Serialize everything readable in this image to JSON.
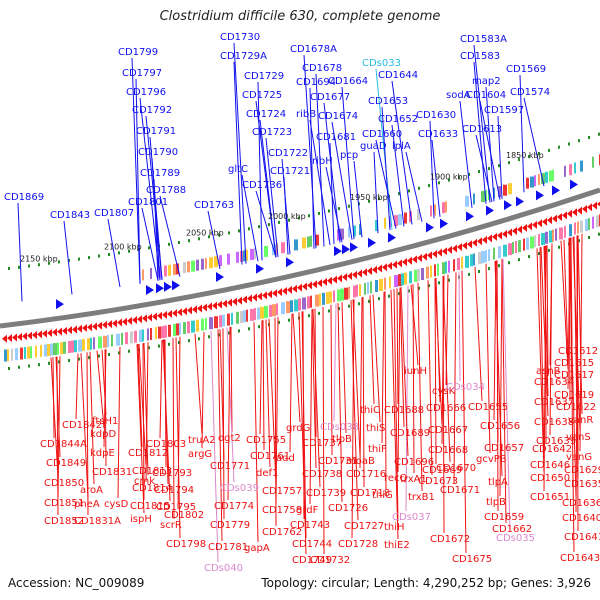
{
  "title": "Clostridium difficile 630, complete genome",
  "footer": {
    "accession": "Accession: NC_009089",
    "summary": "Topology: circular; Length: 4,290,252 bp; Genes: 3,926"
  },
  "colors": {
    "forward": "#1010ee",
    "reverse": "#ee1111",
    "rna_forward": "#22bbdd",
    "rna_reverse": "#dd88cc",
    "backbone": "#888888",
    "tick": "#228822"
  },
  "scale_labels": [
    "2150 kbp",
    "2100 kbp",
    "2050 kbp",
    "2000 kbp",
    "1950 kbp",
    "1900 kbp",
    "1850 kbp"
  ],
  "top_labels": [
    {
      "text": "CD1869",
      "c": "f"
    },
    {
      "text": "CD1843",
      "c": "f"
    },
    {
      "text": "CD1807",
      "c": "f"
    },
    {
      "text": "CD1801",
      "c": "f"
    },
    {
      "text": "CD1788",
      "c": "f"
    },
    {
      "text": "CD1789",
      "c": "f"
    },
    {
      "text": "CD1790",
      "c": "f"
    },
    {
      "text": "CD1791",
      "c": "f"
    },
    {
      "text": "CD1792",
      "c": "f"
    },
    {
      "text": "CD1796",
      "c": "f"
    },
    {
      "text": "CD1797",
      "c": "f"
    },
    {
      "text": "CD1799",
      "c": "f"
    },
    {
      "text": "CD1763",
      "c": "f"
    },
    {
      "text": "gltC",
      "c": "f"
    },
    {
      "text": "CD1736",
      "c": "f"
    },
    {
      "text": "CD1721",
      "c": "f"
    },
    {
      "text": "CD1722",
      "c": "f"
    },
    {
      "text": "CD1723",
      "c": "f"
    },
    {
      "text": "CD1724",
      "c": "f"
    },
    {
      "text": "CD1725",
      "c": "f"
    },
    {
      "text": "CD1729",
      "c": "f"
    },
    {
      "text": "CD1729A",
      "c": "f"
    },
    {
      "text": "CD1730",
      "c": "f"
    },
    {
      "text": "ribH",
      "c": "f"
    },
    {
      "text": "ribB",
      "c": "f"
    },
    {
      "text": "CD1694",
      "c": "f"
    },
    {
      "text": "CD1678",
      "c": "f"
    },
    {
      "text": "CD1678A",
      "c": "f"
    },
    {
      "text": "CD1677",
      "c": "f"
    },
    {
      "text": "CD1674",
      "c": "f"
    },
    {
      "text": "CD1681",
      "c": "f"
    },
    {
      "text": "pcp",
      "c": "f"
    },
    {
      "text": "CD1664",
      "c": "f"
    },
    {
      "text": "CDs033",
      "c": "fr"
    },
    {
      "text": "CD1660",
      "c": "f"
    },
    {
      "text": "guaD",
      "c": "f"
    },
    {
      "text": "CD1653",
      "c": "f"
    },
    {
      "text": "CD1652",
      "c": "f"
    },
    {
      "text": "lplA",
      "c": "f"
    },
    {
      "text": "CD1644",
      "c": "f"
    },
    {
      "text": "CD1630",
      "c": "f"
    },
    {
      "text": "CD1633",
      "c": "f"
    },
    {
      "text": "sodA",
      "c": "f"
    },
    {
      "text": "CD1613",
      "c": "f"
    },
    {
      "text": "CD1604",
      "c": "f"
    },
    {
      "text": "CD1597",
      "c": "f"
    },
    {
      "text": "map2",
      "c": "f"
    },
    {
      "text": "CD1583",
      "c": "f"
    },
    {
      "text": "CD1583A",
      "c": "f"
    },
    {
      "text": "CD1574",
      "c": "f"
    },
    {
      "text": "CD1569",
      "c": "f"
    }
  ],
  "bottom_labels": [
    {
      "text": "CD1842",
      "c": "r"
    },
    {
      "text": "CD1844A",
      "c": "r"
    },
    {
      "text": "CD1849",
      "c": "r"
    },
    {
      "text": "CD1850",
      "c": "r"
    },
    {
      "text": "CD1851",
      "c": "r"
    },
    {
      "text": "CD1852",
      "c": "r"
    },
    {
      "text": "ftsH1",
      "c": "r"
    },
    {
      "text": "kdpD",
      "c": "r"
    },
    {
      "text": "kdpE",
      "c": "r"
    },
    {
      "text": "CD1831",
      "c": "r"
    },
    {
      "text": "aroA",
      "c": "r"
    },
    {
      "text": "pheA",
      "c": "r"
    },
    {
      "text": "cysD",
      "c": "r"
    },
    {
      "text": "CD1831A",
      "c": "r"
    },
    {
      "text": "CD1812",
      "c": "r"
    },
    {
      "text": "CD1813",
      "c": "r"
    },
    {
      "text": "CD1814",
      "c": "r"
    },
    {
      "text": "CD1815",
      "c": "r"
    },
    {
      "text": "cmk",
      "c": "r"
    },
    {
      "text": "ispH",
      "c": "r"
    },
    {
      "text": "CD1803",
      "c": "r"
    },
    {
      "text": "CD1793",
      "c": "r"
    },
    {
      "text": "CD1794",
      "c": "r"
    },
    {
      "text": "CD1795",
      "c": "r"
    },
    {
      "text": "CD1802",
      "c": "r"
    },
    {
      "text": "scrR",
      "c": "r"
    },
    {
      "text": "CD1798",
      "c": "r"
    },
    {
      "text": "truA2",
      "c": "r"
    },
    {
      "text": "argG",
      "c": "r"
    },
    {
      "text": "ogt2",
      "c": "r"
    },
    {
      "text": "CD1771",
      "c": "r"
    },
    {
      "text": "CDs039",
      "c": "rr"
    },
    {
      "text": "CD1774",
      "c": "r"
    },
    {
      "text": "CD1779",
      "c": "r"
    },
    {
      "text": "CD1781",
      "c": "r"
    },
    {
      "text": "CDs040",
      "c": "rr"
    },
    {
      "text": "CD1755",
      "c": "r"
    },
    {
      "text": "CD1761",
      "c": "r"
    },
    {
      "text": "def1",
      "c": "r"
    },
    {
      "text": "CD1757",
      "c": "r"
    },
    {
      "text": "CD1758",
      "c": "r"
    },
    {
      "text": "CD1762",
      "c": "r"
    },
    {
      "text": "gapA",
      "c": "r"
    },
    {
      "text": "grdG",
      "c": "r"
    },
    {
      "text": "add",
      "c": "r"
    },
    {
      "text": "CD1737",
      "c": "r"
    },
    {
      "text": "CD1738",
      "c": "r"
    },
    {
      "text": "CD1739",
      "c": "r"
    },
    {
      "text": "grdF",
      "c": "r"
    },
    {
      "text": "CD1743",
      "c": "r"
    },
    {
      "text": "CD1744",
      "c": "r"
    },
    {
      "text": "CD1749",
      "c": "r"
    },
    {
      "text": "CDs038",
      "c": "rr"
    },
    {
      "text": "CD1731",
      "c": "r"
    },
    {
      "text": "CD1726",
      "c": "r"
    },
    {
      "text": "CD1727",
      "c": "r"
    },
    {
      "text": "CD1728",
      "c": "r"
    },
    {
      "text": "CD1732",
      "c": "r"
    },
    {
      "text": "tlpB",
      "c": "r"
    },
    {
      "text": "moaB",
      "c": "r"
    },
    {
      "text": "CD1716",
      "c": "r"
    },
    {
      "text": "CD1718",
      "c": "r"
    },
    {
      "text": "thiC",
      "c": "r"
    },
    {
      "text": "thiS",
      "c": "r"
    },
    {
      "text": "thiF",
      "c": "r"
    },
    {
      "text": "thiG",
      "c": "r"
    },
    {
      "text": "thiH",
      "c": "r"
    },
    {
      "text": "thiE2",
      "c": "r"
    },
    {
      "text": "CDs037",
      "c": "rr"
    },
    {
      "text": "CD1688",
      "c": "r"
    },
    {
      "text": "CD1689",
      "c": "r"
    },
    {
      "text": "CD1696",
      "c": "r"
    },
    {
      "text": "recQ",
      "c": "r"
    },
    {
      "text": "trxA1",
      "c": "r"
    },
    {
      "text": "trxB1",
      "c": "r"
    },
    {
      "text": "iunH",
      "c": "r"
    },
    {
      "text": "cysK",
      "c": "r"
    },
    {
      "text": "CDs034",
      "c": "rr"
    },
    {
      "text": "CD1666",
      "c": "r"
    },
    {
      "text": "CD1667",
      "c": "r"
    },
    {
      "text": "CD1668",
      "c": "r"
    },
    {
      "text": "CD1669",
      "c": "r"
    },
    {
      "text": "CD1673",
      "c": "r"
    },
    {
      "text": "CD1670",
      "c": "r"
    },
    {
      "text": "CD1671",
      "c": "r"
    },
    {
      "text": "CD1672",
      "c": "r"
    },
    {
      "text": "CD1675",
      "c": "r"
    },
    {
      "text": "CD1655",
      "c": "r"
    },
    {
      "text": "CD1656",
      "c": "r"
    },
    {
      "text": "CD1657",
      "c": "r"
    },
    {
      "text": "gcvPB",
      "c": "r"
    },
    {
      "text": "tlpA",
      "c": "r"
    },
    {
      "text": "tlpB",
      "c": "r"
    },
    {
      "text": "CD1659",
      "c": "r"
    },
    {
      "text": "CD1662",
      "c": "r"
    },
    {
      "text": "CDs035",
      "c": "rr"
    },
    {
      "text": "asnB",
      "c": "r"
    },
    {
      "text": "CD1634",
      "c": "r"
    },
    {
      "text": "CD1637",
      "c": "r"
    },
    {
      "text": "CD1638",
      "c": "r"
    },
    {
      "text": "CD1639",
      "c": "r"
    },
    {
      "text": "CD1642",
      "c": "r"
    },
    {
      "text": "CD1646",
      "c": "r"
    },
    {
      "text": "CD1650",
      "c": "r"
    },
    {
      "text": "CD1651",
      "c": "r"
    },
    {
      "text": "CD1612",
      "c": "r"
    },
    {
      "text": "CD1615",
      "c": "r"
    },
    {
      "text": "CD1617",
      "c": "r"
    },
    {
      "text": "CD1619",
      "c": "r"
    },
    {
      "text": "CD1622",
      "c": "r"
    },
    {
      "text": "vanR",
      "c": "r"
    },
    {
      "text": "vanS",
      "c": "r"
    },
    {
      "text": "vanG",
      "c": "r"
    },
    {
      "text": "CD1629",
      "c": "r"
    },
    {
      "text": "CD1635",
      "c": "r"
    },
    {
      "text": "CD1636",
      "c": "r"
    },
    {
      "text": "CD1640",
      "c": "r"
    },
    {
      "text": "CD1641",
      "c": "r"
    },
    {
      "text": "CD1643",
      "c": "r"
    }
  ]
}
